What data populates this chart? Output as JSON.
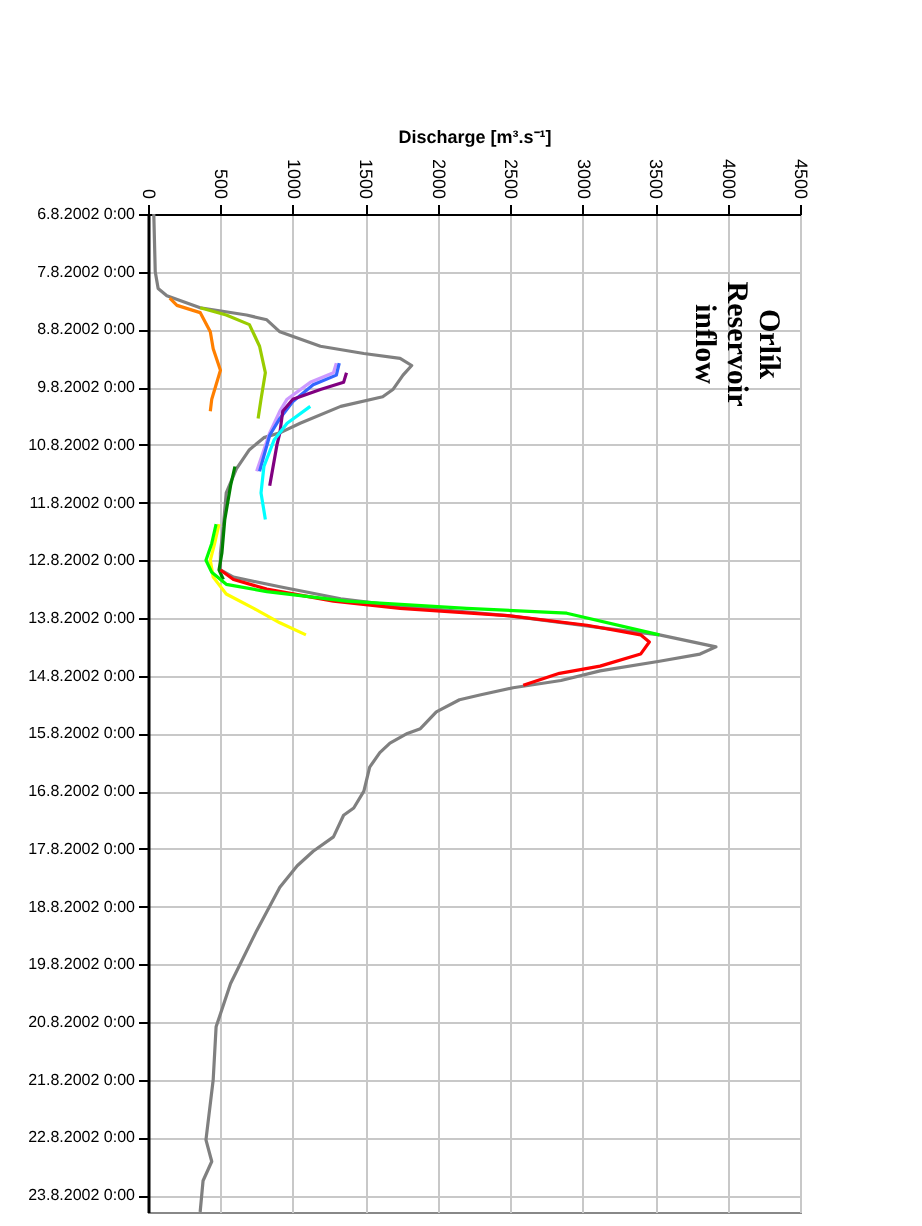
{
  "chart_data": {
    "type": "line",
    "orientation": "horizontal",
    "title": "Orlík Reservoir inflow",
    "xlabel": "Discharge [m³.s⁻¹]",
    "xlim": [
      0,
      4500
    ],
    "xticks": [
      0,
      500,
      1000,
      1500,
      2000,
      2500,
      3000,
      3500,
      4000,
      4500
    ],
    "ylim": [
      "2002-08-23T07:00",
      "2002-08-06T00:00"
    ],
    "yticks": [
      {
        "value": "2002-08-06T00:00",
        "label": "6.8.2002 0:00"
      },
      {
        "value": "2002-08-07T00:00",
        "label": "7.8.2002 0:00"
      },
      {
        "value": "2002-08-08T00:00",
        "label": "8.8.2002 0:00"
      },
      {
        "value": "2002-08-09T00:00",
        "label": "9.8.2002 0:00"
      },
      {
        "value": "2002-08-10T00:00",
        "label": "10.8.2002 0:00"
      },
      {
        "value": "2002-08-11T00:00",
        "label": "11.8.2002 0:00"
      },
      {
        "value": "2002-08-12T00:00",
        "label": "12.8.2002 0:00"
      },
      {
        "value": "2002-08-13T00:00",
        "label": "13.8.2002 0:00"
      },
      {
        "value": "2002-08-14T00:00",
        "label": "14.8.2002 0:00"
      },
      {
        "value": "2002-08-15T00:00",
        "label": "15.8.2002 0:00"
      },
      {
        "value": "2002-08-16T00:00",
        "label": "16.8.2002 0:00"
      },
      {
        "value": "2002-08-17T00:00",
        "label": "17.8.2002 0:00"
      },
      {
        "value": "2002-08-18T00:00",
        "label": "18.8.2002 0:00"
      },
      {
        "value": "2002-08-19T00:00",
        "label": "19.8.2002 0:00"
      },
      {
        "value": "2002-08-20T00:00",
        "label": "20.8.2002 0:00"
      },
      {
        "value": "2002-08-21T00:00",
        "label": "21.8.2002 0:00"
      },
      {
        "value": "2002-08-22T00:00",
        "label": "22.8.2002 0:00"
      },
      {
        "value": "2002-08-23T00:00",
        "label": "23.8.2002 0:00"
      }
    ],
    "grid": true,
    "line_style": "solid",
    "series": [
      {
        "color": "#808080",
        "x": [
          "2002-08-06T00:00",
          "2002-08-07T00:00",
          "2002-08-07T07:00",
          "2002-08-07T10:00",
          "2002-08-07T15:00",
          "2002-08-07T18:00",
          "2002-08-07T20:00",
          "2002-08-08T01:00",
          "2002-08-08T07:00",
          "2002-08-08T10:00",
          "2002-08-08T12:00",
          "2002-08-08T15:00",
          "2002-08-08T19:00",
          "2002-08-09T01:00",
          "2002-08-09T04:00",
          "2002-08-09T08:00",
          "2002-08-09T15:00",
          "2002-08-09T19:00",
          "2002-08-09T21:00",
          "2002-08-10T02:00",
          "2002-08-10T10:00",
          "2002-08-10T20:00",
          "2002-08-11T10:00",
          "2002-08-11T21:00",
          "2002-08-12T04:00",
          "2002-08-12T07:00",
          "2002-08-12T11:00",
          "2002-08-12T16:00",
          "2002-08-12T19:00",
          "2002-08-12T23:00",
          "2002-08-13T04:00",
          "2002-08-13T07:00",
          "2002-08-13T12:00",
          "2002-08-13T15:00",
          "2002-08-13T18:00",
          "2002-08-13T22:00",
          "2002-08-14T02:00",
          "2002-08-14T05:00",
          "2002-08-14T08:00",
          "2002-08-14T10:00",
          "2002-08-14T15:00",
          "2002-08-14T22:00",
          "2002-08-15T00:00",
          "2002-08-15T04:00",
          "2002-08-15T08:00",
          "2002-08-15T14:00",
          "2002-08-16T00:00",
          "2002-08-16T07:00",
          "2002-08-16T10:00",
          "2002-08-16T19:00",
          "2002-08-17T01:00",
          "2002-08-17T07:00",
          "2002-08-17T16:00",
          "2002-08-18T10:00",
          "2002-08-19T08:00",
          "2002-08-20T02:00",
          "2002-08-21T00:00",
          "2002-08-22T01:00",
          "2002-08-22T10:00",
          "2002-08-22T18:00",
          "2002-08-23T07:00"
        ],
        "values": [
          40,
          50,
          70,
          130,
          360,
          680,
          820,
          910,
          1190,
          1490,
          1740,
          1820,
          1760,
          1690,
          1620,
          1330,
          1050,
          910,
          800,
          700,
          610,
          540,
          520,
          500,
          500,
          590,
          910,
          1330,
          1740,
          2480,
          3120,
          3530,
          3920,
          3810,
          3530,
          3120,
          2850,
          2520,
          2290,
          2150,
          1990,
          1880,
          1790,
          1670,
          1600,
          1530,
          1490,
          1420,
          1350,
          1280,
          1140,
          1030,
          910,
          750,
          570,
          470,
          450,
          400,
          440,
          380,
          360
        ]
      },
      {
        "color": "#ff7f00",
        "x": [
          "2002-08-07T11:00",
          "2002-08-07T14:00",
          "2002-08-07T17:00",
          "2002-08-08T01:00",
          "2002-08-08T08:00",
          "2002-08-08T17:00",
          "2002-08-09T05:00",
          "2002-08-09T10:00"
        ],
        "values": [
          150,
          200,
          360,
          430,
          450,
          500,
          440,
          430
        ]
      },
      {
        "color": "#99cc00",
        "x": [
          "2002-08-07T15:00",
          "2002-08-07T18:00",
          "2002-08-07T22:00",
          "2002-08-08T07:00",
          "2002-08-08T18:00",
          "2002-08-09T05:00",
          "2002-08-09T13:00"
        ],
        "values": [
          360,
          540,
          700,
          770,
          810,
          780,
          760
        ]
      },
      {
        "color": "#cc99ff",
        "x": [
          "2002-08-08T14:00",
          "2002-08-08T18:00",
          "2002-08-08T22:00",
          "2002-08-09T05:00",
          "2002-08-09T10:00",
          "2002-08-09T19:00",
          "2002-08-10T11:00"
        ],
        "values": [
          1300,
          1280,
          1120,
          960,
          910,
          840,
          750
        ]
      },
      {
        "color": "#3366ff",
        "x": [
          "2002-08-08T14:00",
          "2002-08-08T19:00",
          "2002-08-08T23:00",
          "2002-08-09T06:00",
          "2002-08-09T13:00",
          "2002-08-09T20:00",
          "2002-08-10T11:00"
        ],
        "values": [
          1320,
          1300,
          1140,
          1000,
          910,
          840,
          770
        ]
      },
      {
        "color": "#800080",
        "x": [
          "2002-08-08T18:00",
          "2002-08-08T22:00",
          "2002-08-09T01:00",
          "2002-08-09T05:00",
          "2002-08-09T10:00",
          "2002-08-09T19:00",
          "2002-08-10T00:00",
          "2002-08-10T17:00"
        ],
        "values": [
          1370,
          1350,
          1190,
          1000,
          930,
          910,
          890,
          840
        ]
      },
      {
        "color": "#00ffff",
        "x": [
          "2002-08-09T08:00",
          "2002-08-09T15:00",
          "2002-08-09T22:00",
          "2002-08-10T09:00",
          "2002-08-10T20:00",
          "2002-08-11T07:00"
        ],
        "values": [
          1120,
          960,
          870,
          800,
          780,
          810
        ]
      },
      {
        "color": "#008000",
        "x": [
          "2002-08-10T09:00",
          "2002-08-10T17:00",
          "2002-08-11T07:00",
          "2002-08-11T21:00",
          "2002-08-12T04:00",
          "2002-08-12T08:00"
        ],
        "values": [
          600,
          570,
          530,
          510,
          490,
          520
        ]
      },
      {
        "color": "#ffff00",
        "x": [
          "2002-08-11T09:00",
          "2002-08-11T17:00",
          "2002-08-12T00:00",
          "2002-08-12T07:00",
          "2002-08-12T14:00",
          "2002-08-12T20:00",
          "2002-08-13T02:00",
          "2002-08-13T07:00"
        ],
        "values": [
          490,
          460,
          430,
          450,
          540,
          730,
          910,
          1090
        ]
      },
      {
        "color": "#ff0000",
        "x": [
          "2002-08-12T04:00",
          "2002-08-12T08:00",
          "2002-08-12T12:00",
          "2002-08-12T17:00",
          "2002-08-12T20:00",
          "2002-08-12T23:00",
          "2002-08-13T03:00",
          "2002-08-13T07:00",
          "2002-08-13T10:00",
          "2002-08-13T15:00",
          "2002-08-13T20:00",
          "2002-08-13T23:00",
          "2002-08-14T04:00"
        ],
        "values": [
          500,
          590,
          820,
          1280,
          1740,
          2480,
          3030,
          3400,
          3460,
          3400,
          3120,
          2840,
          2590
        ]
      },
      {
        "color": "#00ff00",
        "x": [
          "2002-08-11T09:00",
          "2002-08-11T17:00",
          "2002-08-12T00:00",
          "2002-08-12T05:00",
          "2002-08-12T10:00",
          "2002-08-12T13:00",
          "2002-08-12T17:00",
          "2002-08-12T20:00",
          "2002-08-12T22:00",
          "2002-08-13T07:00"
        ],
        "values": [
          470,
          440,
          400,
          440,
          540,
          820,
          1370,
          2200,
          2890,
          3530
        ]
      }
    ]
  }
}
